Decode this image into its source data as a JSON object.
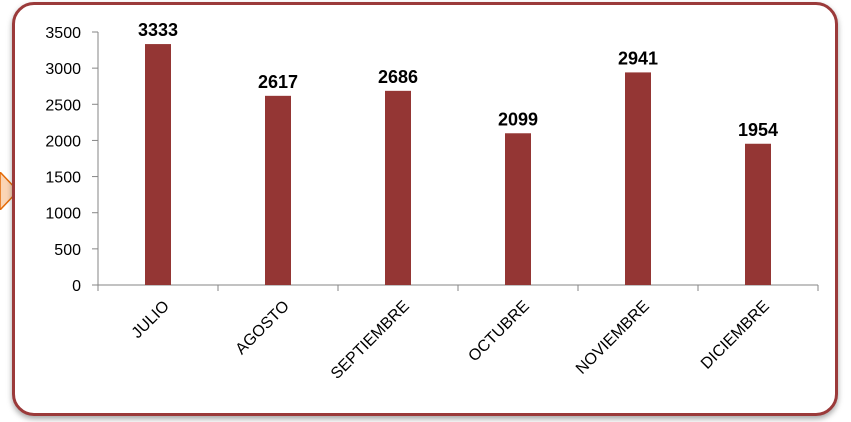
{
  "colors": {
    "bar": "#943634",
    "frame_border": "#9b3a3a",
    "axis": "#868686",
    "arrow_fill": "#fbd5b5",
    "arrow_stroke": "#e46c0a"
  },
  "chart_data": {
    "type": "bar",
    "categories": [
      "JULIO",
      "AGOSTO",
      "SEPTIEMBRE",
      "OCTUBRE",
      "NOVIEMBRE",
      "DICIEMBRE"
    ],
    "values": [
      3333,
      2617,
      2686,
      2099,
      2941,
      1954
    ],
    "ylim": [
      0,
      3500
    ],
    "yticks": [
      0,
      500,
      1000,
      1500,
      2000,
      2500,
      3000,
      3500
    ],
    "title": "",
    "xlabel": "",
    "ylabel": "",
    "grid": false,
    "data_labels": true,
    "legend": "none"
  }
}
